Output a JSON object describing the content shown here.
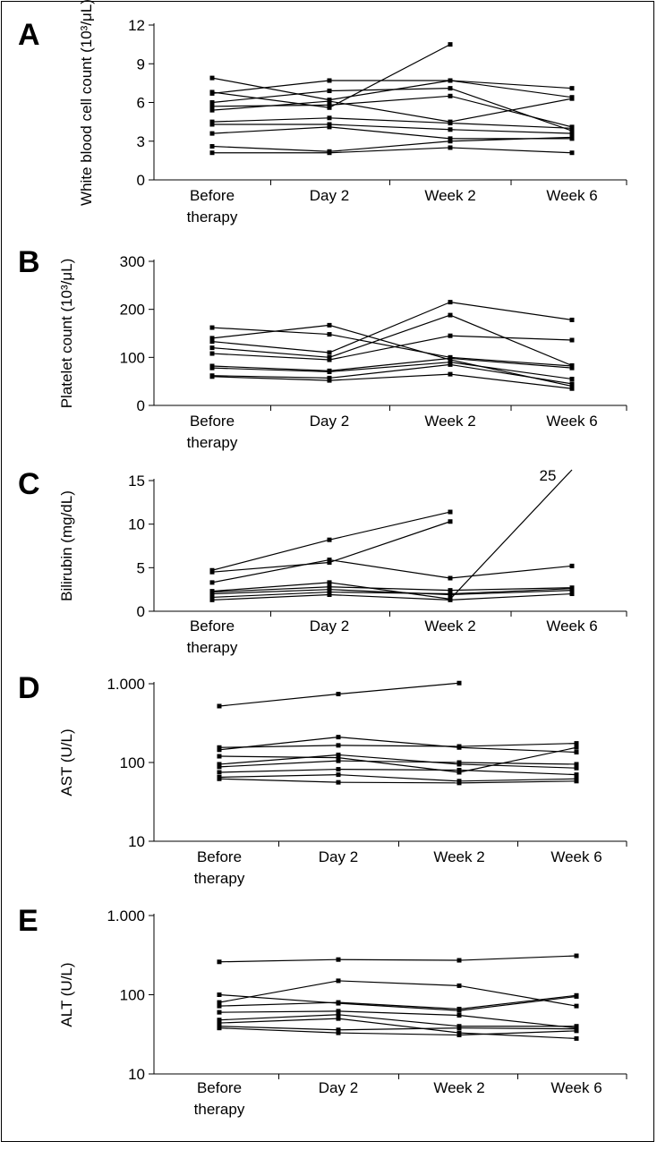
{
  "colors": {
    "line": "#000000",
    "background": "#ffffff"
  },
  "chart_data": [
    {
      "panel": "A",
      "type": "line",
      "ylabel": "White blood cell count (10³/μL)",
      "y_scale": "linear",
      "ylim": [
        0,
        12
      ],
      "y_ticks": [
        "0",
        "3",
        "6",
        "9",
        "12"
      ],
      "categories": [
        "Before therapy",
        "Day 2",
        "Week 2",
        "Week 6"
      ],
      "series": [
        {
          "values": [
            6.8,
            5.6,
            10.5,
            null
          ]
        },
        {
          "values": [
            7.9,
            6.2,
            7.7,
            7.1
          ]
        },
        {
          "values": [
            6.7,
            7.7,
            7.7,
            6.4
          ]
        },
        {
          "values": [
            6.0,
            6.9,
            7.1,
            3.8
          ]
        },
        {
          "values": [
            5.7,
            5.8,
            6.5,
            4.1
          ]
        },
        {
          "values": [
            5.4,
            6.1,
            4.5,
            6.3
          ]
        },
        {
          "values": [
            4.5,
            4.8,
            4.4,
            4.0
          ]
        },
        {
          "values": [
            4.3,
            4.3,
            3.9,
            3.6
          ]
        },
        {
          "values": [
            3.6,
            4.1,
            3.2,
            3.2
          ]
        },
        {
          "values": [
            2.6,
            2.2,
            3.0,
            3.3
          ]
        },
        {
          "values": [
            2.1,
            2.1,
            2.5,
            2.1
          ]
        }
      ]
    },
    {
      "panel": "B",
      "type": "line",
      "ylabel": "Platelet count (10³/μL)",
      "y_scale": "linear",
      "ylim": [
        0,
        300
      ],
      "y_ticks": [
        "0",
        "100",
        "200",
        "300"
      ],
      "categories": [
        "Before therapy",
        "Day 2",
        "Week 2",
        "Week 6"
      ],
      "series": [
        {
          "values": [
            162,
            148,
            100,
            82
          ]
        },
        {
          "values": [
            140,
            167,
            95,
            40
          ]
        },
        {
          "values": [
            133,
            110,
            215,
            178
          ]
        },
        {
          "values": [
            120,
            100,
            188,
            83
          ]
        },
        {
          "values": [
            108,
            95,
            145,
            136
          ]
        },
        {
          "values": [
            82,
            72,
            98,
            78
          ]
        },
        {
          "values": [
            78,
            70,
            90,
            55
          ]
        },
        {
          "values": [
            62,
            57,
            85,
            45
          ]
        },
        {
          "values": [
            60,
            52,
            65,
            35
          ]
        }
      ]
    },
    {
      "panel": "C",
      "type": "line",
      "ylabel": "Bilirubin (mg/dL)",
      "y_scale": "linear",
      "ylim": [
        0,
        15
      ],
      "y_ticks": [
        "0",
        "5",
        "10",
        "15"
      ],
      "categories": [
        "Before therapy",
        "Day 2",
        "Week 2",
        "Week 6"
      ],
      "annotations": [
        {
          "text": "25",
          "value": 25
        }
      ],
      "series": [
        {
          "values": [
            4.7,
            8.2,
            11.4,
            null
          ]
        },
        {
          "values": [
            4.5,
            5.6,
            10.3,
            null
          ]
        },
        {
          "values": [
            3.3,
            5.9,
            3.8,
            5.2
          ]
        },
        {
          "values": [
            2.3,
            3.3,
            1.4,
            25
          ]
        },
        {
          "values": [
            2.2,
            2.8,
            2.4,
            2.7
          ]
        },
        {
          "values": [
            2.0,
            2.5,
            1.9,
            2.4
          ]
        },
        {
          "values": [
            1.6,
            2.2,
            2.0,
            2.6
          ]
        },
        {
          "values": [
            1.3,
            1.9,
            1.3,
            2.0
          ]
        }
      ]
    },
    {
      "panel": "D",
      "type": "line",
      "ylabel": "AST (U/L)",
      "y_scale": "log",
      "ylim": [
        10,
        1000
      ],
      "y_ticks": [
        "10",
        "100",
        "1.000"
      ],
      "categories": [
        "Before therapy",
        "Day 2",
        "Week 2",
        "Week 6"
      ],
      "series": [
        {
          "values": [
            520,
            740,
            1020,
            null
          ]
        },
        {
          "values": [
            155,
            165,
            160,
            175
          ]
        },
        {
          "values": [
            145,
            210,
            155,
            135
          ]
        },
        {
          "values": [
            120,
            115,
            75,
            155
          ]
        },
        {
          "values": [
            95,
            125,
            95,
            85
          ]
        },
        {
          "values": [
            88,
            105,
            100,
            95
          ]
        },
        {
          "values": [
            75,
            82,
            80,
            70
          ]
        },
        {
          "values": [
            65,
            70,
            58,
            62
          ]
        },
        {
          "values": [
            62,
            56,
            55,
            58
          ]
        }
      ]
    },
    {
      "panel": "E",
      "type": "line",
      "ylabel": "ALT (U/L)",
      "y_scale": "log",
      "ylim": [
        10,
        1000
      ],
      "y_ticks": [
        "10",
        "100",
        "1.000"
      ],
      "categories": [
        "Before therapy",
        "Day 2",
        "Week 2",
        "Week 6"
      ],
      "series": [
        {
          "values": [
            260,
            278,
            272,
            310
          ]
        },
        {
          "values": [
            100,
            78,
            63,
            95
          ]
        },
        {
          "values": [
            80,
            150,
            130,
            72
          ]
        },
        {
          "values": [
            72,
            80,
            66,
            98
          ]
        },
        {
          "values": [
            60,
            62,
            55,
            38
          ]
        },
        {
          "values": [
            48,
            56,
            40,
            40
          ]
        },
        {
          "values": [
            44,
            50,
            33,
            28
          ]
        },
        {
          "values": [
            40,
            36,
            38,
            37
          ]
        },
        {
          "values": [
            38,
            33,
            31,
            35
          ]
        }
      ]
    }
  ]
}
